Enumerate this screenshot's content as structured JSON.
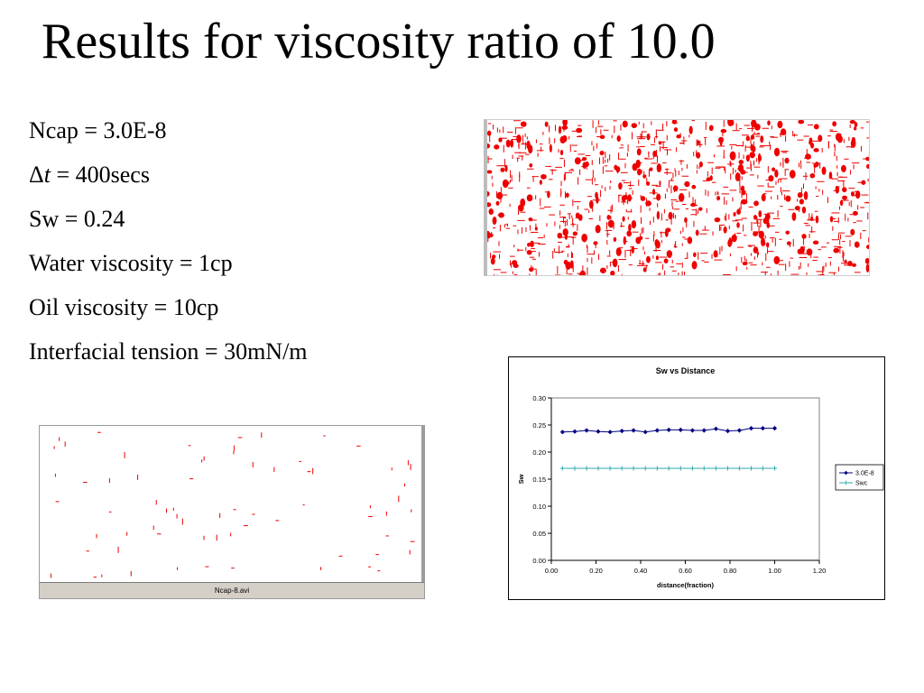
{
  "slide": {
    "title": "Results for viscosity ratio of 10.0",
    "params": [
      {
        "prefix": "Ncap = 3.0E-8",
        "italic": "",
        "suffix": ""
      },
      {
        "prefix": "Δ",
        "italic": "t",
        "suffix": " = 400secs"
      },
      {
        "prefix": "Sw = 0.24",
        "italic": "",
        "suffix": ""
      },
      {
        "prefix": "Water viscosity = 1cp",
        "italic": "",
        "suffix": ""
      },
      {
        "prefix": "Oil viscosity = 10cp",
        "italic": "",
        "suffix": ""
      },
      {
        "prefix": "Interfacial tension = 30mN/m",
        "italic": "",
        "suffix": ""
      }
    ]
  },
  "video": {
    "caption": "Ncap-8.avi"
  },
  "colors": {
    "droplet": "#ee0000",
    "series1": "#000080",
    "series2": "#33aaaa"
  },
  "chart_data": {
    "type": "line",
    "title": "Sw vs Distance",
    "xlabel": "distance(fraction)",
    "ylabel": "Sw",
    "xlim": [
      0,
      1.2
    ],
    "ylim": [
      0,
      0.3
    ],
    "xticks": [
      "0.00",
      "0.20",
      "0.40",
      "0.60",
      "0.80",
      "1.00",
      "1.20"
    ],
    "yticks": [
      "0.00",
      "0.05",
      "0.10",
      "0.15",
      "0.20",
      "0.25",
      "0.30"
    ],
    "grid": false,
    "legend_position": "right",
    "series": [
      {
        "name": "3.0E-8",
        "marker": "diamond",
        "x": [
          0.05,
          0.105,
          0.158,
          0.21,
          0.263,
          0.316,
          0.368,
          0.421,
          0.474,
          0.526,
          0.579,
          0.632,
          0.684,
          0.737,
          0.79,
          0.842,
          0.895,
          0.947,
          1.0
        ],
        "y": [
          0.237,
          0.238,
          0.24,
          0.238,
          0.237,
          0.239,
          0.24,
          0.237,
          0.24,
          0.241,
          0.241,
          0.24,
          0.24,
          0.243,
          0.239,
          0.24,
          0.244,
          0.244,
          0.244
        ]
      },
      {
        "name": "Swc",
        "marker": "plus",
        "x": [
          0.05,
          0.105,
          0.158,
          0.21,
          0.263,
          0.316,
          0.368,
          0.421,
          0.474,
          0.526,
          0.579,
          0.632,
          0.684,
          0.737,
          0.79,
          0.842,
          0.895,
          0.947,
          1.0
        ],
        "y": [
          0.17,
          0.17,
          0.17,
          0.17,
          0.17,
          0.17,
          0.17,
          0.17,
          0.17,
          0.17,
          0.17,
          0.17,
          0.17,
          0.17,
          0.17,
          0.17,
          0.17,
          0.17,
          0.17
        ]
      }
    ]
  }
}
